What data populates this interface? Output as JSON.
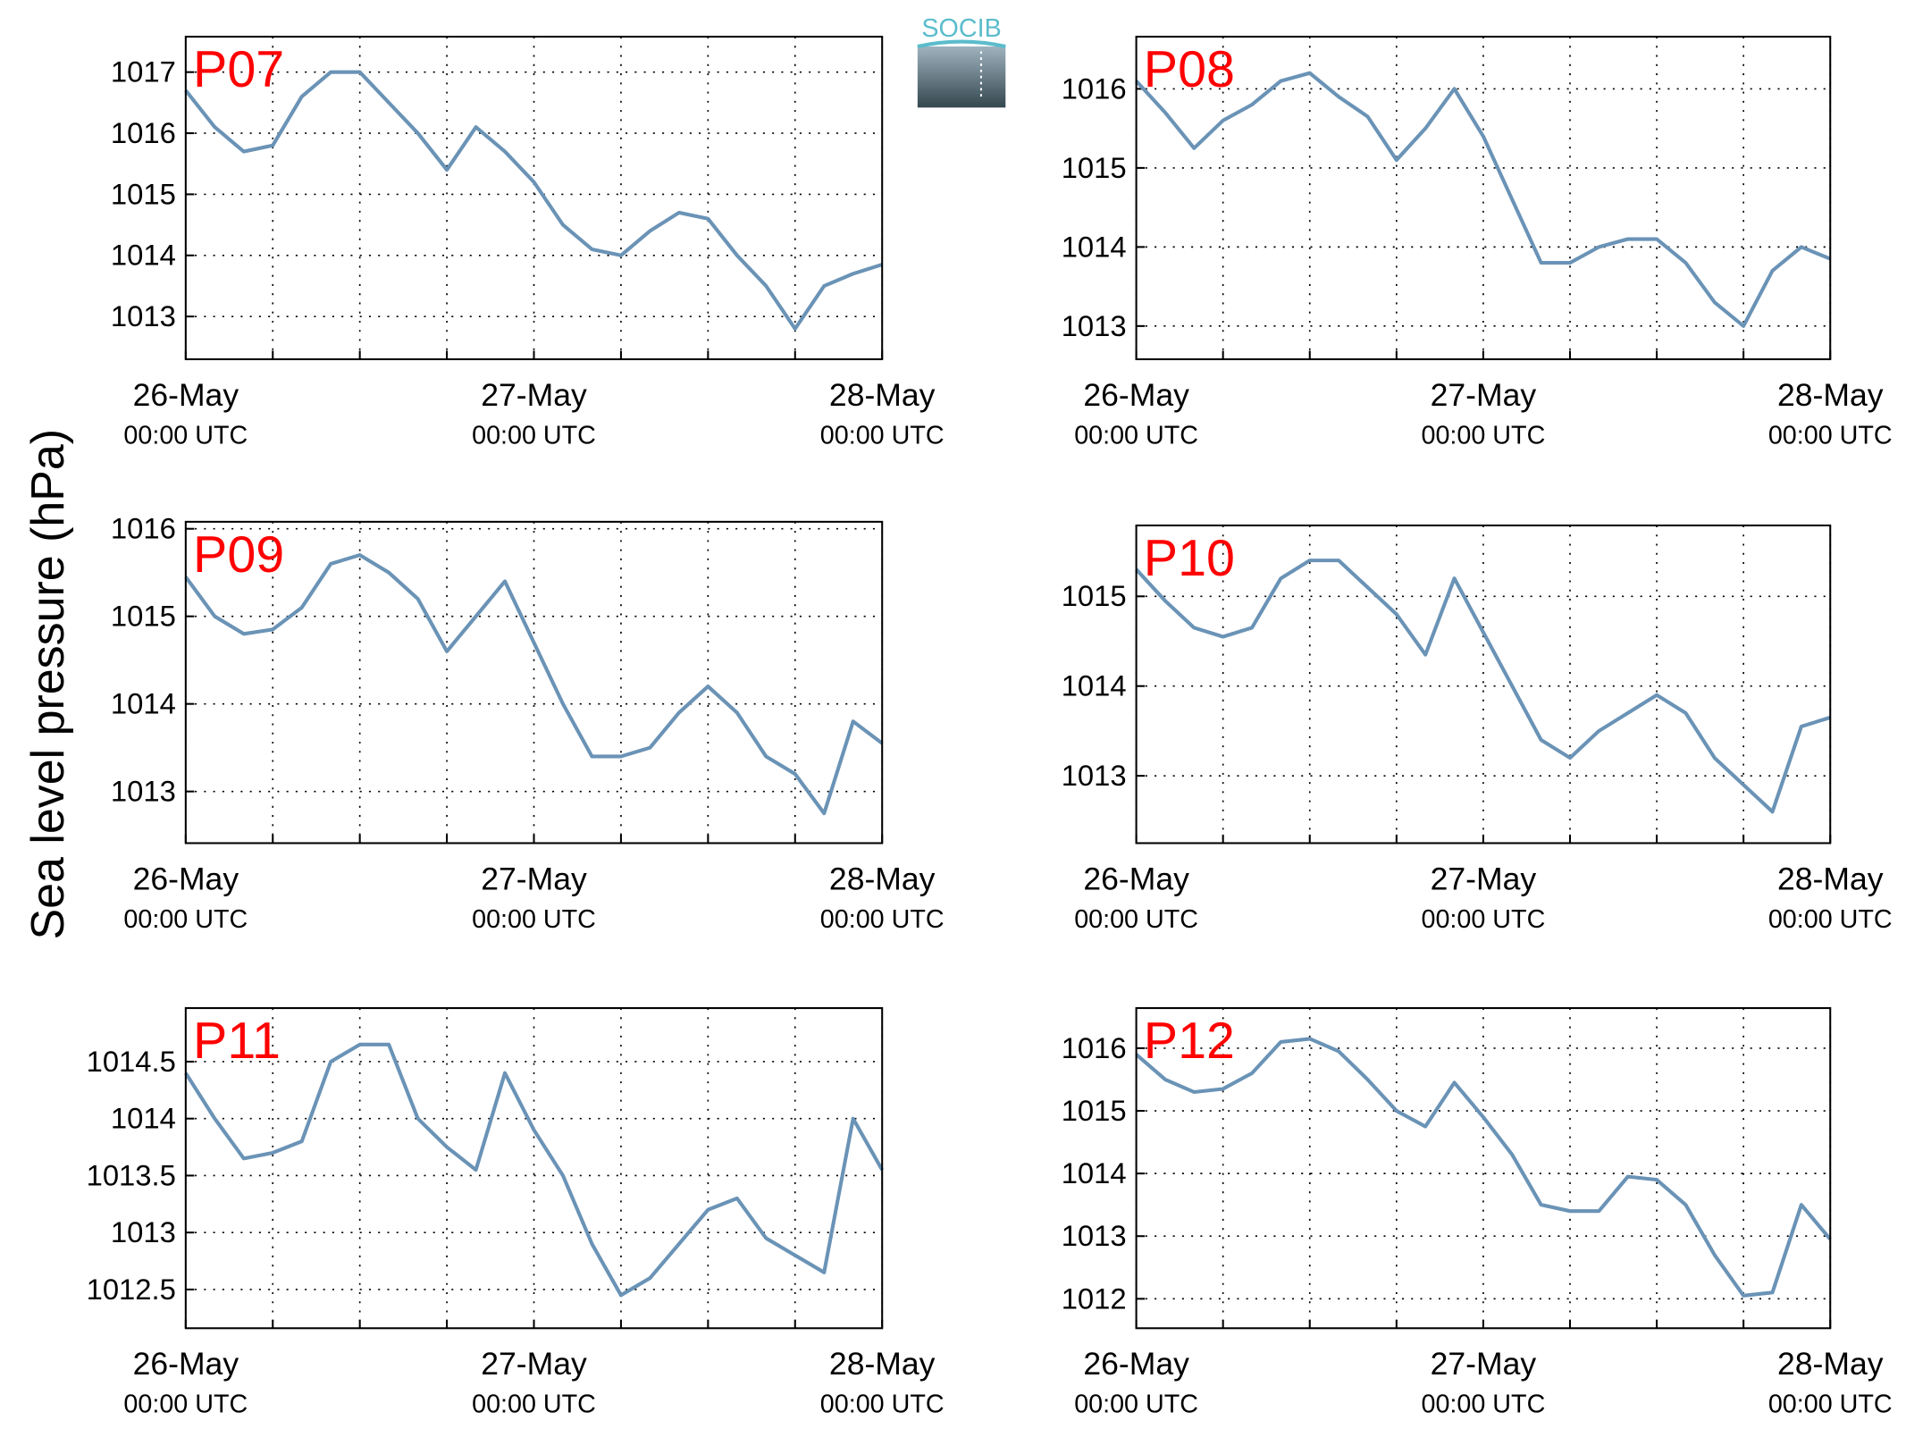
{
  "figure": {
    "ylabel": "Sea level pressure (hPa)",
    "logo": "SOCIB"
  },
  "chart_data": [
    {
      "type": "line",
      "title": "P07",
      "color": "#6a93b6",
      "grid": true,
      "x": [
        0,
        2,
        4,
        6,
        8,
        10,
        12,
        14,
        16,
        18,
        20,
        22,
        24,
        26,
        28,
        30,
        32,
        34,
        36,
        38,
        40,
        42,
        44,
        46,
        48
      ],
      "values": [
        1016.7,
        1016.1,
        1015.7,
        1015.8,
        1016.6,
        1017.0,
        1017.0,
        1016.5,
        1016.0,
        1015.4,
        1016.1,
        1015.7,
        1015.2,
        1014.5,
        1014.1,
        1014.0,
        1014.4,
        1014.7,
        1014.6,
        1014.0,
        1013.5,
        1012.8,
        1013.5,
        1013.7,
        1013.85
      ],
      "xlim": [
        0,
        48
      ],
      "xticks": [
        {
          "value": 0,
          "label": "26-May",
          "sublabel": "00:00 UTC"
        },
        {
          "value": 24,
          "label": "27-May",
          "sublabel": "00:00 UTC"
        },
        {
          "value": 48,
          "label": "28-May",
          "sublabel": "00:00 UTC"
        }
      ],
      "xminor": [
        6,
        12,
        18,
        30,
        36,
        42
      ],
      "ylim": [
        1012.3,
        1017.58
      ],
      "yticks": [
        1013,
        1014,
        1015,
        1016,
        1017
      ]
    },
    {
      "type": "line",
      "title": "P08",
      "color": "#6a93b6",
      "grid": true,
      "x": [
        0,
        2,
        4,
        6,
        8,
        10,
        12,
        14,
        16,
        18,
        20,
        22,
        24,
        26,
        28,
        30,
        32,
        34,
        36,
        38,
        40,
        42,
        44,
        46,
        48
      ],
      "values": [
        1016.1,
        1015.7,
        1015.25,
        1015.6,
        1015.8,
        1016.1,
        1016.2,
        1015.9,
        1015.65,
        1015.1,
        1015.5,
        1016.0,
        1015.4,
        1014.6,
        1013.8,
        1013.8,
        1014.0,
        1014.1,
        1014.1,
        1013.8,
        1013.3,
        1013.0,
        1013.7,
        1014.0,
        1013.85
      ],
      "xlim": [
        0,
        48
      ],
      "xticks": [
        {
          "value": 0,
          "label": "26-May",
          "sublabel": "00:00 UTC"
        },
        {
          "value": 24,
          "label": "27-May",
          "sublabel": "00:00 UTC"
        },
        {
          "value": 48,
          "label": "28-May",
          "sublabel": "00:00 UTC"
        }
      ],
      "xminor": [
        6,
        12,
        18,
        30,
        36,
        42
      ],
      "ylim": [
        1012.58,
        1016.66
      ],
      "yticks": [
        1013,
        1014,
        1015,
        1016
      ]
    },
    {
      "type": "line",
      "title": "P09",
      "color": "#6a93b6",
      "grid": true,
      "x": [
        0,
        2,
        4,
        6,
        8,
        10,
        12,
        14,
        16,
        18,
        20,
        22,
        24,
        26,
        28,
        30,
        32,
        34,
        36,
        38,
        40,
        42,
        44,
        46,
        48
      ],
      "values": [
        1015.45,
        1015.0,
        1014.8,
        1014.85,
        1015.1,
        1015.6,
        1015.7,
        1015.5,
        1015.2,
        1014.6,
        1015.0,
        1015.4,
        1014.7,
        1014.0,
        1013.4,
        1013.4,
        1013.5,
        1013.9,
        1014.2,
        1013.9,
        1013.4,
        1013.2,
        1012.75,
        1013.8,
        1013.55
      ],
      "xlim": [
        0,
        48
      ],
      "xticks": [
        {
          "value": 0,
          "label": "26-May",
          "sublabel": "00:00 UTC"
        },
        {
          "value": 24,
          "label": "27-May",
          "sublabel": "00:00 UTC"
        },
        {
          "value": 48,
          "label": "28-May",
          "sublabel": "00:00 UTC"
        }
      ],
      "xminor": [
        6,
        12,
        18,
        30,
        36,
        42
      ],
      "ylim": [
        1012.41,
        1016.08
      ],
      "yticks": [
        1013,
        1014,
        1015,
        1016
      ]
    },
    {
      "type": "line",
      "title": "P10",
      "color": "#6a93b6",
      "grid": true,
      "x": [
        0,
        2,
        4,
        6,
        8,
        10,
        12,
        14,
        16,
        18,
        20,
        22,
        24,
        26,
        28,
        30,
        32,
        34,
        36,
        38,
        40,
        42,
        44,
        46,
        48
      ],
      "values": [
        1015.3,
        1014.95,
        1014.65,
        1014.55,
        1014.65,
        1015.2,
        1015.4,
        1015.4,
        1015.1,
        1014.8,
        1014.35,
        1015.2,
        1014.6,
        1014.0,
        1013.4,
        1013.2,
        1013.5,
        1013.7,
        1013.9,
        1013.7,
        1013.2,
        1012.9,
        1012.6,
        1013.55,
        1013.65
      ],
      "xlim": [
        0,
        48
      ],
      "xticks": [
        {
          "value": 0,
          "label": "26-May",
          "sublabel": "00:00 UTC"
        },
        {
          "value": 24,
          "label": "27-May",
          "sublabel": "00:00 UTC"
        },
        {
          "value": 48,
          "label": "28-May",
          "sublabel": "00:00 UTC"
        }
      ],
      "xminor": [
        6,
        12,
        18,
        30,
        36,
        42
      ],
      "ylim": [
        1012.25,
        1015.79
      ],
      "yticks": [
        1013,
        1014,
        1015
      ]
    },
    {
      "type": "line",
      "title": "P11",
      "color": "#6a93b6",
      "grid": true,
      "x": [
        0,
        2,
        4,
        6,
        8,
        10,
        12,
        14,
        16,
        18,
        20,
        22,
        24,
        26,
        28,
        30,
        32,
        34,
        36,
        38,
        40,
        42,
        44,
        46,
        48
      ],
      "values": [
        1014.4,
        1014.0,
        1013.65,
        1013.7,
        1013.8,
        1014.5,
        1014.65,
        1014.65,
        1014.0,
        1013.75,
        1013.55,
        1014.4,
        1013.9,
        1013.5,
        1012.9,
        1012.45,
        1012.6,
        1012.9,
        1013.2,
        1013.3,
        1012.95,
        1012.8,
        1012.65,
        1014.0,
        1013.55
      ],
      "xlim": [
        0,
        48
      ],
      "xticks": [
        {
          "value": 0,
          "label": "26-May",
          "sublabel": "00:00 UTC"
        },
        {
          "value": 24,
          "label": "27-May",
          "sublabel": "00:00 UTC"
        },
        {
          "value": 48,
          "label": "28-May",
          "sublabel": "00:00 UTC"
        }
      ],
      "xminor": [
        6,
        12,
        18,
        30,
        36,
        42
      ],
      "ylim": [
        1012.16,
        1014.97
      ],
      "yticks": [
        1012.5,
        1013,
        1013.5,
        1014,
        1014.5
      ]
    },
    {
      "type": "line",
      "title": "P12",
      "color": "#6a93b6",
      "grid": true,
      "x": [
        0,
        2,
        4,
        6,
        8,
        10,
        12,
        14,
        16,
        18,
        20,
        22,
        24,
        26,
        28,
        30,
        32,
        34,
        36,
        38,
        40,
        42,
        44,
        46,
        48
      ],
      "values": [
        1015.9,
        1015.5,
        1015.3,
        1015.35,
        1015.6,
        1016.1,
        1016.15,
        1015.95,
        1015.5,
        1015.0,
        1014.75,
        1015.45,
        1014.9,
        1014.3,
        1013.5,
        1013.4,
        1013.4,
        1013.95,
        1013.9,
        1013.5,
        1012.7,
        1012.05,
        1012.1,
        1013.5,
        1012.95
      ],
      "xlim": [
        0,
        48
      ],
      "xticks": [
        {
          "value": 0,
          "label": "26-May",
          "sublabel": "00:00 UTC"
        },
        {
          "value": 24,
          "label": "27-May",
          "sublabel": "00:00 UTC"
        },
        {
          "value": 48,
          "label": "28-May",
          "sublabel": "00:00 UTC"
        }
      ],
      "xminor": [
        6,
        12,
        18,
        30,
        36,
        42
      ],
      "ylim": [
        1011.53,
        1016.64
      ],
      "yticks": [
        1012,
        1013,
        1014,
        1015,
        1016
      ]
    }
  ]
}
